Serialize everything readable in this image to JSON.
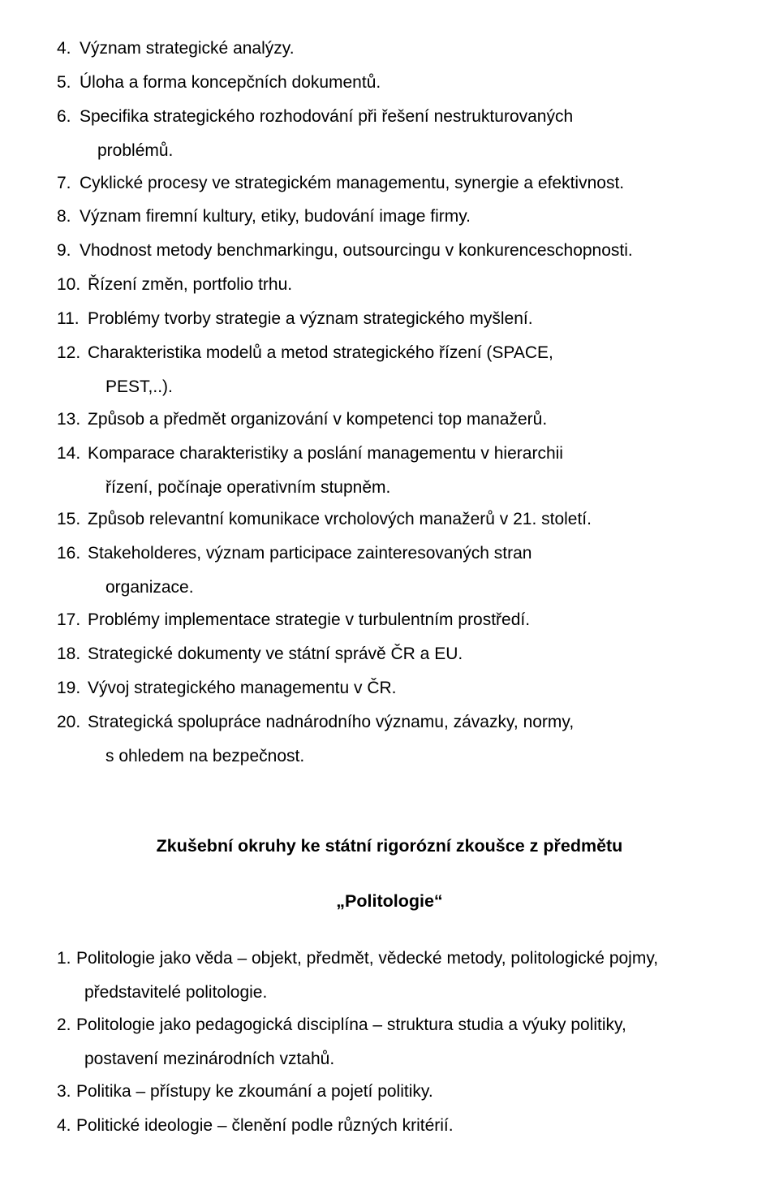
{
  "section1": {
    "items": [
      {
        "n": "4.",
        "t": "Význam strategické analýzy."
      },
      {
        "n": "5.",
        "t": "Úloha a forma koncepčních dokumentů."
      },
      {
        "n": "6.",
        "t": "Specifika strategického rozhodování při řešení nestrukturovaných",
        "cont": "problémů."
      },
      {
        "n": "7.",
        "t": "Cyklické procesy ve strategickém managementu, synergie a efektivnost."
      },
      {
        "n": "8.",
        "t": "Význam firemní kultury, etiky, budování image firmy."
      },
      {
        "n": "9.",
        "t": "Vhodnost metody benchmarkingu, outsourcingu v konkurenceschopnosti."
      },
      {
        "n": "10.",
        "t": "Řízení změn, portfolio trhu."
      },
      {
        "n": "11.",
        "t": "Problémy tvorby strategie a význam strategického myšlení."
      },
      {
        "n": "12.",
        "t": "Charakteristika modelů a metod strategického řízení (SPACE,",
        "cont": "PEST,..)."
      },
      {
        "n": "13.",
        "t": "Způsob a předmět organizování v kompetenci top manažerů."
      },
      {
        "n": "14.",
        "t": "Komparace charakteristiky a poslání managementu v hierarchii",
        "cont": "řízení, počínaje operativním stupněm."
      },
      {
        "n": "15.",
        "t": "Způsob relevantní komunikace vrcholových manažerů v 21. století."
      },
      {
        "n": "16.",
        "t": "Stakeholderes, význam participace zainteresovaných stran",
        "cont": "organizace."
      },
      {
        "n": "17.",
        "t": "Problémy implementace strategie v turbulentním prostředí."
      },
      {
        "n": "18.",
        "t": "Strategické dokumenty ve státní správě ČR a EU."
      },
      {
        "n": "19.",
        "t": "Vývoj strategického managementu v ČR."
      },
      {
        "n": "20.",
        "t": "Strategická spolupráce nadnárodního významu, závazky, normy,",
        "cont": "s ohledem na bezpečnost."
      }
    ]
  },
  "heading": "Zkušební okruhy ke státní rigorózní zkoušce z předmětu",
  "subheading": "„Politologie“",
  "section2": {
    "items": [
      {
        "n": "1.",
        "t": "Politologie jako věda – objekt, předmět, vědecké metody, politologické pojmy,",
        "cont": "představitelé politologie."
      },
      {
        "n": "2.",
        "t": "Politologie jako pedagogická disciplína – struktura studia a výuky politiky,",
        "cont": "postavení mezinárodních vztahů."
      },
      {
        "n": "3.",
        "t": " Politika – přístupy ke zkoumání a pojetí politiky."
      },
      {
        "n": "4.",
        "t": " Politické ideologie – členění podle různých kritérií."
      }
    ]
  }
}
